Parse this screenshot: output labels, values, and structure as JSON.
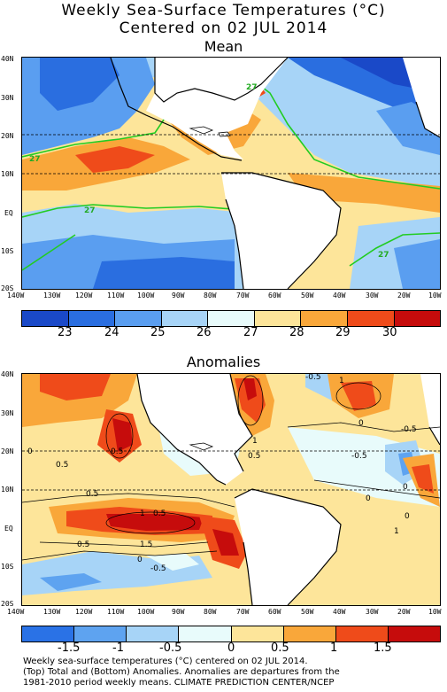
{
  "header": {
    "title_line1": "Weekly Sea-Surface Temperatures (°C)",
    "title_line2": "Centered on 02 JUL 2014"
  },
  "mean_panel": {
    "title": "Mean",
    "contour_labels": [
      "27",
      "27",
      "27",
      "27"
    ],
    "colorbar": {
      "colors": [
        "#1a49c8",
        "#2a6ee0",
        "#5a9ef0",
        "#a7d4f7",
        "#e8fbfb",
        "#fde59a",
        "#f9a73a",
        "#ef4b1a",
        "#c60c0c"
      ],
      "tick_labels": [
        "23",
        "24",
        "25",
        "26",
        "27",
        "28",
        "29",
        "30"
      ]
    }
  },
  "anomaly_panel": {
    "title": "Anomalies",
    "contour_labels": [
      "1",
      "1",
      "1",
      "1.5",
      "0.5",
      "0.5",
      "0.5",
      "0",
      "-0.5",
      "-0.5",
      "0",
      "0",
      "0.5",
      "-0.5",
      "1",
      "0.5",
      "0.5",
      "0",
      "0",
      "-0.5",
      "0"
    ],
    "colorbar": {
      "colors": [
        "#2a72e6",
        "#5ea3f0",
        "#a7d4f7",
        "#e8fbfb",
        "#fde59a",
        "#f9a73a",
        "#ef4b1a",
        "#c60c0c"
      ],
      "tick_labels": [
        "-1.5",
        "-1",
        "-0.5",
        "0",
        "0.5",
        "1",
        "1.5"
      ]
    }
  },
  "axes": {
    "lat_labels": [
      "40N",
      "30N",
      "20N",
      "10N",
      "EQ",
      "10S",
      "20S"
    ],
    "lon_labels": [
      "140W",
      "130W",
      "120W",
      "110W",
      "100W",
      "90W",
      "80W",
      "70W",
      "60W",
      "50W",
      "40W",
      "30W",
      "20W",
      "10W"
    ]
  },
  "footer": {
    "line1": "Weekly sea-surface temperatures (°C) centered on 02 JUL 2014.",
    "line2": "(Top) Total and (Bottom) Anomalies. Anomalies are departures from the",
    "line3": "1981-2010 period weekly means. CLIMATE PREDICTION CENTER/NCEP"
  }
}
